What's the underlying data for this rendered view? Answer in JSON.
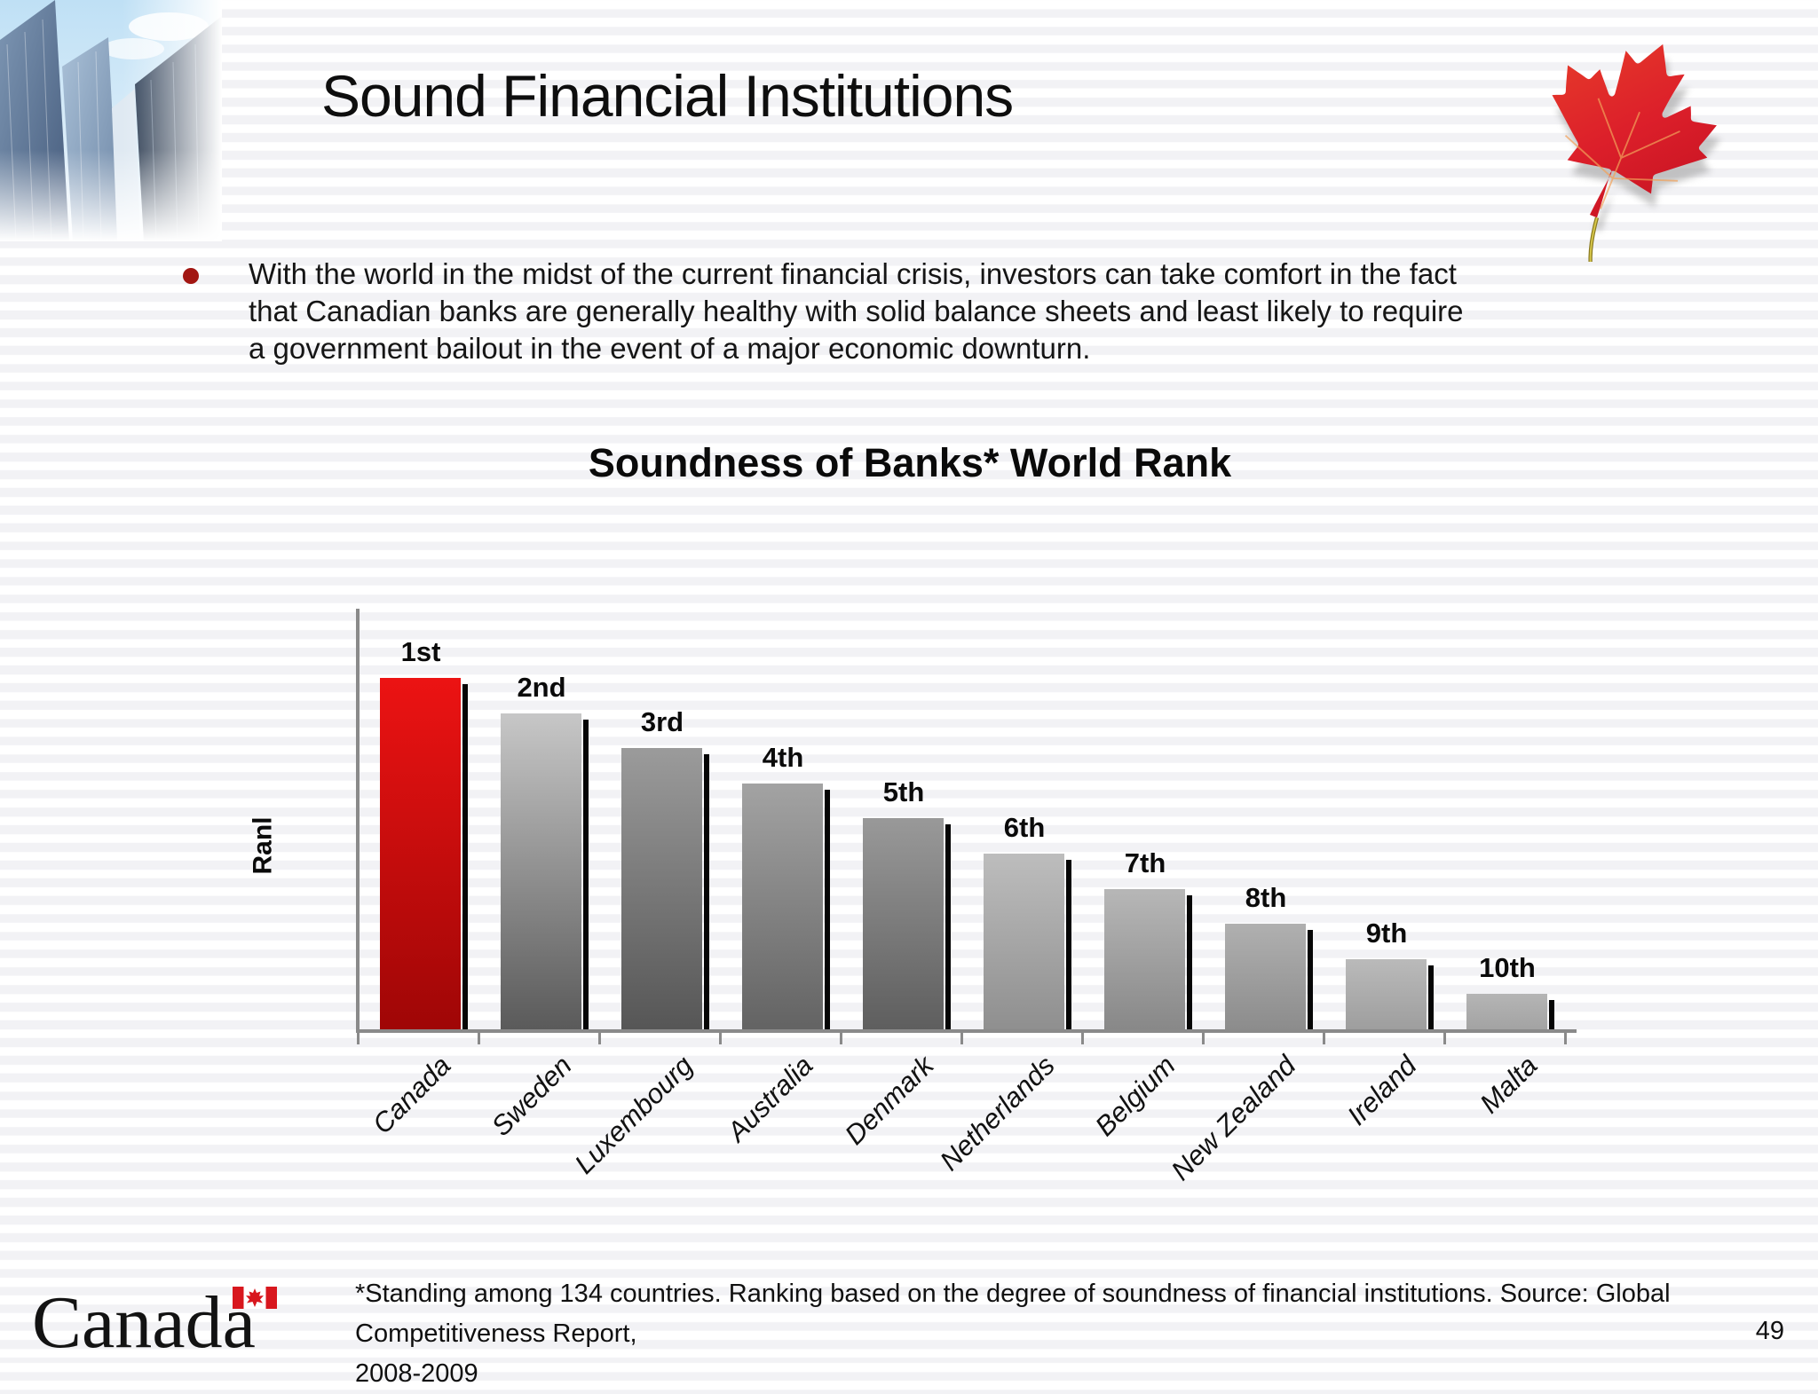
{
  "slide": {
    "title": "Sound Financial Institutions",
    "bullet_lines": [
      "With the world in the midst of the current financial crisis, investors can take comfort in the fact",
      "that Canadian banks are generally healthy with solid balance sheets and least likely to require",
      "a government bailout in the event of a major economic downturn."
    ],
    "footnote_line1": "*Standing among 134 countries. Ranking based on the degree of soundness of financial institutions. Source: Global Competitiveness Report,",
    "footnote_line2": "2008-2009",
    "page_number": "49",
    "wordmark_text": "Canada",
    "bullet_color": "#a21612"
  },
  "chart_data": {
    "type": "bar",
    "title": "Soundness of Banks* World Rank",
    "ylabel": "Ranl",
    "xlabel": "",
    "grid": "off",
    "legend": "none",
    "categories": [
      "Canada",
      "Sweden",
      "Luxembourg",
      "Australia",
      "Denmark",
      "Netherlands",
      "Belgium",
      "New Zealand",
      "Ireland",
      "Malta"
    ],
    "rank_labels": [
      "1st",
      "2nd",
      "3rd",
      "4th",
      "5th",
      "6th",
      "7th",
      "8th",
      "9th",
      "10th"
    ],
    "ranks": [
      1,
      2,
      3,
      4,
      5,
      6,
      7,
      8,
      9,
      10
    ],
    "values": [
      10,
      9,
      8,
      7,
      6,
      5,
      4,
      3,
      2,
      1
    ],
    "highlight_category": "Canada",
    "highlight_color": "#e01010",
    "axis_color": "#8a8a8a",
    "shadow_color": "#060606",
    "bar_colors": [
      {
        "top": "#ec1313",
        "bottom": "#9f0606"
      },
      {
        "top": "#c7c7c7",
        "bottom": "#5a5a5a"
      },
      {
        "top": "#9b9b9b",
        "bottom": "#565656"
      },
      {
        "top": "#a3a3a3",
        "bottom": "#636363"
      },
      {
        "top": "#999999",
        "bottom": "#5e5e5e"
      },
      {
        "top": "#bdbdbd",
        "bottom": "#8f8f8f"
      },
      {
        "top": "#b7b7b7",
        "bottom": "#888888"
      },
      {
        "top": "#b0b0b0",
        "bottom": "#8c8c8c"
      },
      {
        "top": "#bababa",
        "bottom": "#9e9e9e"
      },
      {
        "top": "#b5b5b5",
        "bottom": "#a3a3a3"
      }
    ]
  }
}
